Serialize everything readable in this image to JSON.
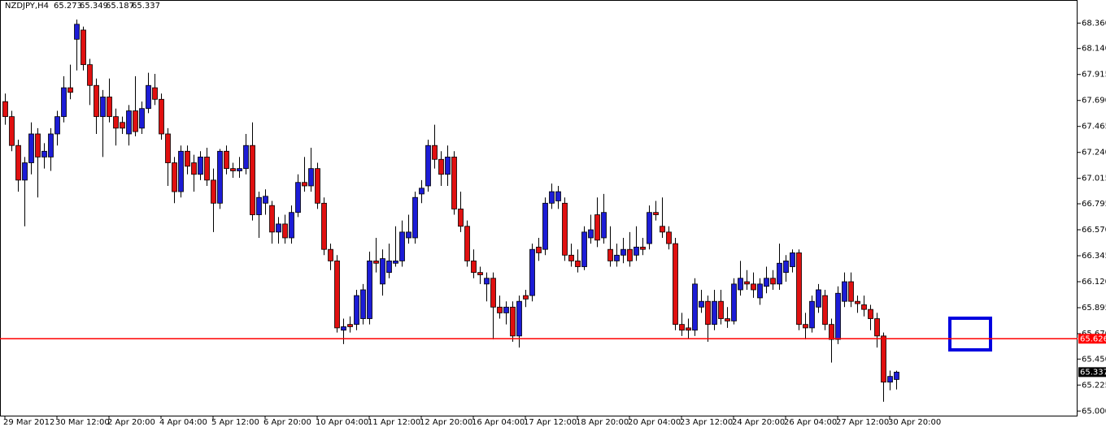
{
  "chart_data": {
    "type": "candlestick",
    "title": "NZDJPY,H4",
    "categories": [
      "29 Mar 2012",
      null,
      null,
      null,
      null,
      null,
      null,
      null,
      "30 Mar 12:00",
      null,
      null,
      null,
      null,
      null,
      null,
      null,
      "2 Apr 20:00",
      null,
      null,
      null,
      null,
      null,
      null,
      null,
      "4 Apr 04:00",
      null,
      null,
      null,
      null,
      null,
      null,
      null,
      "5 Apr 12:00",
      null,
      null,
      null,
      null,
      null,
      null,
      null,
      "6 Apr 20:00",
      null,
      null,
      null,
      null,
      null,
      null,
      null,
      "10 Apr 04:00",
      null,
      null,
      null,
      null,
      null,
      null,
      null,
      "11 Apr 12:00",
      null,
      null,
      null,
      null,
      null,
      null,
      null,
      "12 Apr 20:00",
      null,
      null,
      null,
      null,
      null,
      null,
      null,
      "16 Apr 04:00",
      null,
      null,
      null,
      null,
      null,
      null,
      null,
      "17 Apr 12:00",
      null,
      null,
      null,
      null,
      null,
      null,
      null,
      "18 Apr 20:00",
      null,
      null,
      null,
      null,
      null,
      null,
      null,
      "20 Apr 04:00",
      null,
      null,
      null,
      null,
      null,
      null,
      null,
      "23 Apr 12:00",
      null,
      null,
      null,
      null,
      null,
      null,
      null,
      "24 Apr 20:00",
      null,
      null,
      null,
      null,
      null,
      null,
      null,
      "26 Apr 04:00",
      null,
      null,
      null,
      null,
      null,
      null,
      null,
      "27 Apr 12:00",
      null,
      null,
      null,
      null,
      null,
      null,
      null,
      "30 Apr 20:00",
      null
    ],
    "open": [
      67.68,
      67.55,
      67.3,
      67.0,
      67.15,
      67.4,
      67.2,
      67.2,
      67.4,
      67.55,
      67.8,
      68.22,
      68.3,
      68.0,
      67.82,
      67.55,
      67.72,
      67.55,
      67.5,
      67.4,
      67.6,
      67.45,
      67.62,
      67.8,
      67.7,
      67.4,
      67.15,
      66.9,
      67.25,
      67.15,
      67.05,
      67.2,
      67.0,
      66.8,
      67.25,
      67.1,
      67.08,
      67.1,
      67.3,
      66.7,
      66.8,
      66.78,
      66.55,
      66.62,
      66.5,
      66.72,
      66.98,
      66.95,
      67.1,
      66.8,
      66.4,
      66.3,
      65.7,
      65.75,
      65.75,
      65.8,
      65.8,
      66.3,
      66.1,
      66.2,
      66.28,
      66.3,
      66.5,
      66.5,
      66.88,
      66.95,
      67.3,
      67.18,
      67.05,
      67.2,
      66.75,
      66.6,
      66.3,
      66.2,
      66.1,
      66.15,
      65.9,
      65.85,
      65.9,
      65.65,
      66.0,
      66.0,
      66.42,
      66.4,
      66.8,
      66.82,
      66.8,
      66.35,
      66.3,
      66.25,
      66.5,
      66.7,
      66.5,
      66.4,
      66.3,
      66.35,
      66.4,
      66.35,
      66.42,
      66.45,
      66.72,
      66.6,
      66.55,
      66.45,
      65.75,
      65.72,
      65.7,
      65.9,
      65.95,
      65.75,
      65.95,
      65.8,
      65.78,
      66.05,
      66.12,
      66.1,
      65.98,
      66.08,
      66.15,
      66.1,
      66.2,
      66.25,
      66.37,
      65.75,
      65.72,
      65.9,
      66.0,
      65.75,
      65.62,
      65.95,
      66.12,
      65.95,
      65.92,
      65.88,
      65.8,
      65.65,
      65.25,
      65.273
    ],
    "high": [
      67.75,
      67.6,
      67.35,
      67.2,
      67.5,
      67.45,
      67.32,
      67.45,
      67.6,
      67.9,
      68.0,
      68.39,
      68.33,
      68.05,
      67.88,
      67.78,
      67.88,
      67.62,
      67.55,
      67.65,
      67.9,
      67.68,
      67.93,
      67.92,
      67.75,
      67.45,
      67.2,
      67.3,
      67.3,
      67.22,
      67.25,
      67.28,
      67.1,
      67.27,
      67.3,
      67.15,
      67.2,
      67.4,
      67.5,
      66.9,
      66.92,
      66.82,
      66.68,
      66.7,
      66.78,
      67.05,
      67.2,
      67.28,
      67.15,
      66.85,
      66.45,
      66.35,
      65.8,
      65.82,
      66.05,
      66.1,
      66.38,
      66.5,
      66.4,
      66.45,
      66.6,
      66.65,
      66.7,
      66.9,
      67.0,
      67.35,
      67.48,
      67.25,
      67.3,
      67.25,
      66.9,
      66.65,
      66.4,
      66.25,
      66.2,
      66.2,
      66.0,
      65.95,
      65.95,
      66.0,
      66.05,
      66.45,
      66.5,
      66.85,
      66.97,
      66.95,
      66.85,
      66.45,
      66.4,
      66.6,
      66.7,
      66.85,
      66.88,
      66.6,
      66.45,
      66.5,
      66.55,
      66.6,
      66.5,
      66.78,
      66.82,
      66.85,
      66.6,
      66.5,
      65.85,
      65.8,
      66.15,
      66.05,
      66.0,
      66.05,
      66.05,
      65.9,
      66.15,
      66.3,
      66.22,
      66.2,
      66.15,
      66.25,
      66.22,
      66.45,
      66.35,
      66.4,
      66.4,
      65.85,
      66.0,
      66.1,
      66.05,
      65.8,
      66.08,
      66.2,
      66.2,
      66.0,
      66.0,
      65.92,
      65.85,
      65.68,
      65.35,
      65.349
    ],
    "low": [
      67.48,
      67.25,
      66.9,
      66.6,
      67.05,
      66.85,
      67.1,
      67.08,
      67.3,
      67.5,
      67.7,
      67.95,
      67.95,
      67.65,
      67.4,
      67.2,
      67.5,
      67.3,
      67.4,
      67.3,
      67.38,
      67.4,
      67.58,
      67.65,
      67.35,
      66.95,
      66.8,
      66.85,
      67.05,
      66.9,
      67.0,
      66.95,
      66.55,
      66.75,
      67.05,
      67.02,
      67.02,
      67.05,
      66.65,
      66.5,
      66.7,
      66.45,
      66.45,
      66.45,
      66.45,
      66.68,
      66.9,
      66.9,
      66.75,
      66.35,
      66.22,
      65.68,
      65.58,
      65.68,
      65.7,
      65.75,
      65.75,
      66.2,
      66.0,
      66.15,
      66.25,
      66.25,
      66.45,
      66.45,
      66.8,
      66.9,
      67.1,
      66.95,
      66.95,
      66.7,
      66.55,
      66.25,
      66.15,
      66.1,
      65.95,
      65.62,
      65.8,
      65.75,
      65.6,
      65.55,
      65.9,
      65.95,
      66.3,
      66.35,
      66.75,
      66.75,
      66.3,
      66.25,
      66.2,
      66.22,
      66.45,
      66.42,
      66.45,
      66.25,
      66.25,
      66.28,
      66.25,
      66.3,
      66.35,
      66.4,
      66.65,
      66.5,
      66.4,
      65.7,
      65.65,
      65.63,
      65.65,
      65.85,
      65.6,
      65.7,
      65.75,
      65.72,
      65.75,
      66.0,
      66.05,
      65.98,
      65.92,
      66.02,
      66.05,
      66.05,
      66.12,
      66.2,
      65.7,
      65.62,
      65.68,
      65.85,
      65.7,
      65.42,
      65.58,
      65.9,
      65.9,
      65.85,
      65.82,
      65.7,
      65.55,
      65.08,
      65.18,
      65.187
    ],
    "close": [
      67.55,
      67.3,
      67.0,
      67.15,
      67.4,
      67.2,
      67.25,
      67.4,
      67.55,
      67.8,
      67.76,
      68.35,
      68.0,
      67.82,
      67.55,
      67.72,
      67.55,
      67.45,
      67.45,
      67.6,
      67.42,
      67.62,
      67.82,
      67.7,
      67.4,
      67.15,
      66.9,
      67.25,
      67.12,
      67.05,
      67.2,
      67.0,
      66.8,
      67.25,
      67.1,
      67.08,
      67.1,
      67.3,
      66.7,
      66.85,
      66.86,
      66.55,
      66.62,
      66.5,
      66.72,
      66.98,
      66.95,
      67.1,
      66.8,
      66.4,
      66.3,
      65.72,
      65.73,
      65.73,
      66.0,
      66.05,
      66.3,
      66.28,
      66.32,
      66.3,
      66.3,
      66.55,
      66.55,
      66.85,
      66.93,
      67.3,
      67.18,
      67.05,
      67.2,
      66.75,
      66.6,
      66.3,
      66.2,
      66.18,
      66.15,
      65.9,
      65.85,
      65.9,
      65.65,
      65.95,
      65.97,
      66.4,
      66.37,
      66.8,
      66.9,
      66.9,
      66.35,
      66.3,
      66.25,
      66.55,
      66.57,
      66.48,
      66.72,
      66.3,
      66.35,
      66.4,
      66.3,
      66.42,
      66.4,
      66.72,
      66.7,
      66.55,
      66.45,
      65.75,
      65.7,
      65.7,
      66.1,
      65.95,
      65.75,
      65.95,
      65.8,
      65.78,
      66.1,
      66.15,
      66.1,
      66.05,
      66.1,
      66.15,
      66.1,
      66.28,
      66.3,
      66.37,
      65.75,
      65.72,
      65.95,
      66.05,
      65.75,
      65.62,
      66.02,
      66.12,
      65.95,
      65.93,
      65.88,
      65.8,
      65.65,
      65.25,
      65.3,
      65.337
    ],
    "up_color": "#1c1cd6",
    "down_color": "#e01010",
    "level": {
      "value": 65.626,
      "color": "#ff0000"
    },
    "ylim": [
      64.96,
      68.56
    ],
    "yticks": [
      {
        "value": 68.36,
        "label": "68.360"
      },
      {
        "value": 68.14,
        "label": "68.140"
      },
      {
        "value": 67.915,
        "label": "67.915"
      },
      {
        "value": 67.69,
        "label": "67.690"
      },
      {
        "value": 67.465,
        "label": "67.465"
      },
      {
        "value": 67.24,
        "label": "67.240"
      },
      {
        "value": 67.015,
        "label": "67.015"
      },
      {
        "value": 66.795,
        "label": "66.795"
      },
      {
        "value": 66.57,
        "label": "66.570"
      },
      {
        "value": 66.345,
        "label": "66.345"
      },
      {
        "value": 66.12,
        "label": "66.120"
      },
      {
        "value": 65.895,
        "label": "65.895"
      },
      {
        "value": 65.67,
        "label": "65.670"
      },
      {
        "value": 65.45,
        "label": "65.450"
      },
      {
        "value": 65.225,
        "label": "65.225"
      },
      {
        "value": 65.0,
        "label": "65.000"
      }
    ]
  }
}
